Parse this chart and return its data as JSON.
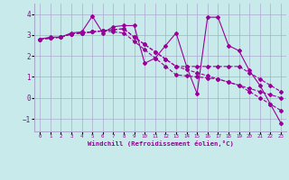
{
  "xlabel": "Windchill (Refroidissement éolien,°C)",
  "bg_color": "#c8eaea",
  "line_color": "#990099",
  "grid_color": "#aaaacc",
  "xlim": [
    -0.5,
    23.5
  ],
  "ylim": [
    -1.6,
    4.5
  ],
  "yticks": [
    -1,
    0,
    1,
    2,
    3,
    4
  ],
  "xticks": [
    0,
    1,
    2,
    3,
    4,
    5,
    6,
    7,
    8,
    9,
    10,
    11,
    12,
    13,
    14,
    15,
    16,
    17,
    18,
    19,
    20,
    21,
    22,
    23
  ],
  "series": [
    [
      2.8,
      2.9,
      2.9,
      3.1,
      3.15,
      3.9,
      3.1,
      3.4,
      3.45,
      3.45,
      1.65,
      1.9,
      2.5,
      3.1,
      1.5,
      0.2,
      3.85,
      3.85,
      2.5,
      2.25,
      1.3,
      0.6,
      -0.3,
      -1.2
    ],
    [
      2.8,
      2.85,
      2.9,
      3.05,
      3.1,
      3.15,
      3.2,
      3.25,
      3.3,
      2.9,
      2.55,
      2.2,
      1.85,
      1.5,
      1.5,
      1.5,
      1.5,
      1.5,
      1.5,
      1.5,
      1.2,
      0.9,
      0.6,
      0.3
    ],
    [
      2.8,
      2.85,
      2.9,
      3.05,
      3.1,
      3.15,
      3.2,
      3.25,
      3.3,
      2.9,
      2.55,
      2.2,
      1.85,
      1.5,
      1.35,
      1.2,
      1.05,
      0.9,
      0.75,
      0.6,
      0.45,
      0.3,
      0.15,
      0.0
    ],
    [
      2.8,
      2.85,
      2.9,
      3.05,
      3.1,
      3.15,
      3.2,
      3.15,
      3.1,
      2.7,
      2.3,
      1.9,
      1.5,
      1.1,
      1.05,
      1.0,
      0.95,
      0.9,
      0.75,
      0.6,
      0.3,
      0.0,
      -0.3,
      -0.6
    ]
  ],
  "linestyles": [
    "-",
    "--",
    "--",
    "--"
  ],
  "marker": "D",
  "markersize": 2.0,
  "linewidth": 0.8
}
